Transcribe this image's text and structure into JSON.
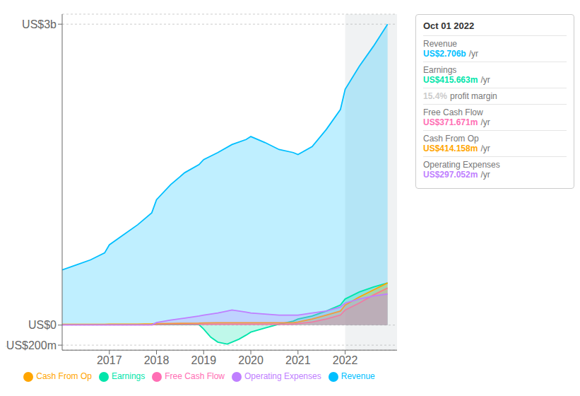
{
  "chart_data": {
    "type": "area",
    "xlim": [
      2016.0,
      2023.1
    ],
    "xticks": [
      2017,
      2018,
      2019,
      2020,
      2021,
      2022
    ],
    "ylim": [
      -0.25,
      3.1
    ],
    "yticks": [
      {
        "value": -0.2,
        "label": "-US$200m"
      },
      {
        "value": 0,
        "label": "US$0"
      },
      {
        "value": 3,
        "label": "US$3b"
      }
    ],
    "grid": true,
    "legend": "bottom",
    "highlight": [
      2022.0,
      2023.1
    ],
    "series": [
      {
        "name": "Revenue",
        "color": "#00bfff",
        "x": [
          2016.0,
          2016.3,
          2016.6,
          2016.9,
          2017.0,
          2017.3,
          2017.6,
          2017.9,
          2018.0,
          2018.3,
          2018.6,
          2018.9,
          2019.0,
          2019.3,
          2019.6,
          2019.9,
          2020.0,
          2020.3,
          2020.6,
          2020.9,
          2021.0,
          2021.3,
          2021.6,
          2021.9,
          2022.0,
          2022.3,
          2022.6,
          2022.9
        ],
        "values": [
          0.55,
          0.6,
          0.65,
          0.72,
          0.8,
          0.9,
          1.0,
          1.12,
          1.25,
          1.4,
          1.52,
          1.6,
          1.65,
          1.72,
          1.8,
          1.85,
          1.88,
          1.82,
          1.75,
          1.72,
          1.7,
          1.78,
          1.95,
          2.15,
          2.35,
          2.58,
          2.78,
          3.0
        ]
      },
      {
        "name": "Earnings",
        "color": "#00e5aa",
        "x": [
          2016.0,
          2016.3,
          2016.6,
          2016.9,
          2017.0,
          2017.3,
          2017.6,
          2017.9,
          2018.0,
          2018.3,
          2018.6,
          2018.9,
          2019.0,
          2019.15,
          2019.3,
          2019.5,
          2019.6,
          2019.75,
          2019.9,
          2020.0,
          2020.3,
          2020.6,
          2020.9,
          2021.0,
          2021.3,
          2021.6,
          2021.9,
          2022.0,
          2022.3,
          2022.6,
          2022.9
        ],
        "values": [
          0.005,
          0.005,
          0.005,
          0.005,
          0.005,
          0.005,
          0.005,
          0.005,
          0.005,
          0.005,
          0.005,
          0.005,
          -0.04,
          -0.12,
          -0.17,
          -0.19,
          -0.17,
          -0.14,
          -0.1,
          -0.07,
          -0.03,
          0.01,
          0.04,
          0.06,
          0.09,
          0.14,
          0.2,
          0.26,
          0.33,
          0.38,
          0.42
        ]
      },
      {
        "name": "Free Cash Flow",
        "color": "#ff6eb4",
        "x": [
          2016.0,
          2016.3,
          2016.6,
          2016.9,
          2017.0,
          2017.3,
          2017.6,
          2017.9,
          2018.0,
          2018.3,
          2018.6,
          2018.9,
          2019.0,
          2019.3,
          2019.6,
          2019.9,
          2020.0,
          2020.3,
          2020.6,
          2020.9,
          2021.0,
          2021.3,
          2021.6,
          2021.9,
          2022.0,
          2022.3,
          2022.6,
          2022.9
        ],
        "values": [
          0.003,
          0.003,
          0.003,
          0.003,
          0.003,
          0.003,
          0.003,
          0.003,
          0.008,
          0.01,
          0.01,
          0.01,
          0.01,
          0.01,
          0.01,
          0.01,
          0.01,
          0.01,
          0.01,
          0.01,
          0.015,
          0.03,
          0.06,
          0.1,
          0.15,
          0.22,
          0.3,
          0.37
        ]
      },
      {
        "name": "Cash From Op",
        "color": "#ffa500",
        "x": [
          2016.0,
          2016.3,
          2016.6,
          2016.9,
          2017.0,
          2017.3,
          2017.6,
          2017.9,
          2018.0,
          2018.3,
          2018.6,
          2018.9,
          2019.0,
          2019.3,
          2019.6,
          2019.9,
          2020.0,
          2020.3,
          2020.6,
          2020.9,
          2021.0,
          2021.3,
          2021.6,
          2021.9,
          2022.0,
          2022.3,
          2022.6,
          2022.9
        ],
        "values": [
          0.008,
          0.008,
          0.008,
          0.008,
          0.01,
          0.01,
          0.01,
          0.012,
          0.014,
          0.016,
          0.018,
          0.02,
          0.022,
          0.024,
          0.024,
          0.024,
          0.024,
          0.024,
          0.024,
          0.024,
          0.03,
          0.06,
          0.1,
          0.14,
          0.2,
          0.28,
          0.35,
          0.42
        ]
      },
      {
        "name": "Operating Expenses",
        "color": "#bf7fff",
        "x": [
          2016.0,
          2016.3,
          2016.6,
          2016.9,
          2017.0,
          2017.3,
          2017.6,
          2017.9,
          2018.0,
          2018.3,
          2018.6,
          2018.9,
          2019.0,
          2019.3,
          2019.5,
          2019.6,
          2019.75,
          2019.9,
          2020.0,
          2020.3,
          2020.6,
          2020.9,
          2021.0,
          2021.3,
          2021.6,
          2021.9,
          2022.0,
          2022.3,
          2022.6,
          2022.9
        ],
        "values": [
          0.003,
          0.003,
          0.003,
          0.003,
          0.003,
          0.003,
          0.003,
          0.003,
          0.025,
          0.05,
          0.07,
          0.09,
          0.1,
          0.12,
          0.14,
          0.15,
          0.14,
          0.13,
          0.12,
          0.11,
          0.1,
          0.1,
          0.1,
          0.12,
          0.14,
          0.18,
          0.22,
          0.26,
          0.29,
          0.31
        ]
      }
    ],
    "tooltip": {
      "title": "Oct 01 2022",
      "rows": [
        {
          "label": "Revenue",
          "text": "US$2.706b",
          "suffix": "/yr",
          "color": "#00bfff"
        },
        {
          "label": "Earnings",
          "text": "US$415.663m",
          "suffix": "/yr",
          "color": "#00e5aa"
        },
        {
          "text": "15.4%",
          "suffix": "profit margin",
          "color": "#cccccc"
        },
        {
          "label": "Free Cash Flow",
          "text": "US$371.671m",
          "suffix": "/yr",
          "color": "#ff6eb4"
        },
        {
          "label": "Cash From Op",
          "text": "US$414.158m",
          "suffix": "/yr",
          "color": "#ffa500"
        },
        {
          "label": "Operating Expenses",
          "text": "US$297.052m",
          "suffix": "/yr",
          "color": "#bf7fff"
        }
      ]
    }
  }
}
